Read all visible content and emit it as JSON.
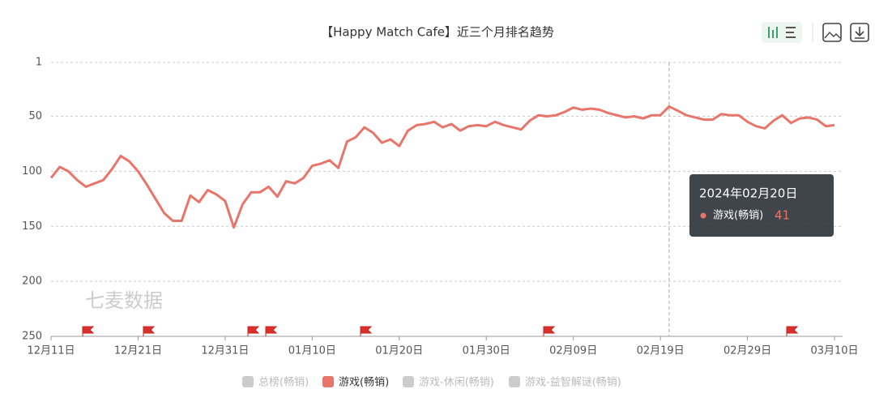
{
  "chart_data": {
    "type": "line",
    "title": "【Happy Match Cafe】近三个月排名趋势",
    "categories": [
      "12月11日",
      null,
      null,
      null,
      null,
      null,
      null,
      null,
      null,
      null,
      "12月21日",
      null,
      null,
      null,
      null,
      null,
      null,
      null,
      null,
      null,
      "12月31日",
      null,
      null,
      null,
      null,
      null,
      null,
      null,
      null,
      null,
      "01月10日",
      null,
      null,
      null,
      null,
      null,
      null,
      null,
      null,
      null,
      "01月20日",
      null,
      null,
      null,
      null,
      null,
      null,
      null,
      null,
      null,
      "01月30日",
      null,
      null,
      null,
      null,
      null,
      null,
      null,
      null,
      null,
      "02月09日",
      null,
      null,
      null,
      null,
      null,
      null,
      null,
      null,
      null,
      "02月19日",
      null,
      null,
      null,
      null,
      null,
      null,
      null,
      null,
      null,
      "02月29日",
      null,
      null,
      null,
      null,
      null,
      null,
      null,
      null,
      null,
      "03月10日"
    ],
    "series": [
      {
        "name": "游戏(畅销)",
        "color": "#e8756a",
        "values": [
          106,
          96,
          100,
          108,
          114,
          111,
          108,
          98,
          86,
          91,
          100,
          112,
          125,
          138,
          145,
          145,
          122,
          128,
          117,
          121,
          127,
          151,
          130,
          119,
          119,
          114,
          123,
          109,
          111,
          106,
          95,
          93,
          90,
          97,
          73,
          69,
          60,
          65,
          74,
          71,
          77,
          63,
          58,
          57,
          55,
          60,
          57,
          63,
          59,
          58,
          59,
          55,
          58,
          60,
          62,
          54,
          49,
          50,
          49,
          46,
          42,
          44,
          43,
          44,
          47,
          49,
          51,
          50,
          52,
          49,
          49,
          41,
          45,
          49,
          51,
          53,
          53,
          48,
          49,
          49,
          55,
          59,
          61,
          54,
          49,
          56,
          52,
          51,
          53,
          59,
          58
        ]
      }
    ],
    "legend": [
      {
        "name": "总榜(畅销)",
        "active": false
      },
      {
        "name": "游戏(畅销)",
        "active": true
      },
      {
        "name": "游戏-休闲(畅销)",
        "active": false
      },
      {
        "name": "游戏-益智解谜(畅销)",
        "active": false
      }
    ],
    "ylim": [
      1,
      250
    ],
    "yticks": [
      1,
      50,
      100,
      150,
      200,
      250
    ],
    "y_inverted": true,
    "grid": true,
    "watermark": "七麦数据",
    "tooltip": {
      "title": "2024年02月20日",
      "index": 71
    }
  }
}
